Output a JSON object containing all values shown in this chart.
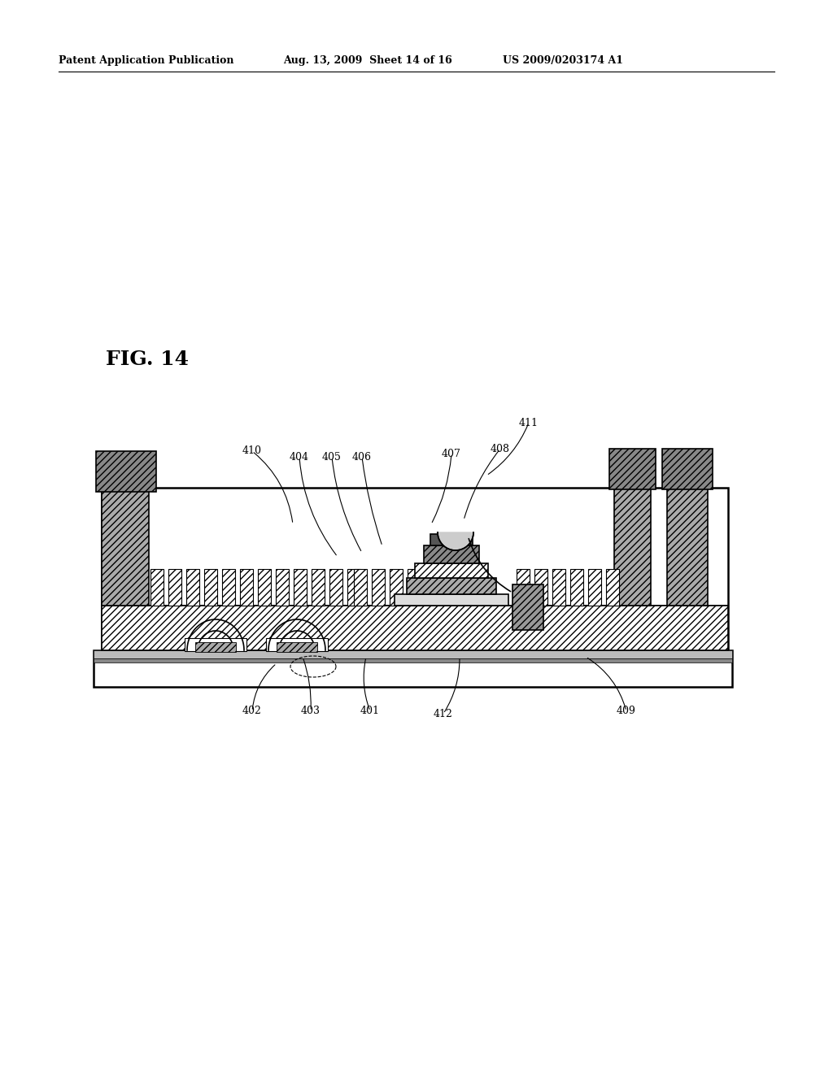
{
  "header_left": "Patent Application Publication",
  "header_mid": "Aug. 13, 2009  Sheet 14 of 16",
  "header_right": "US 2009/0203174 A1",
  "fig_label": "FIG. 14",
  "bg_color": "#ffffff",
  "text_color": "#000000"
}
